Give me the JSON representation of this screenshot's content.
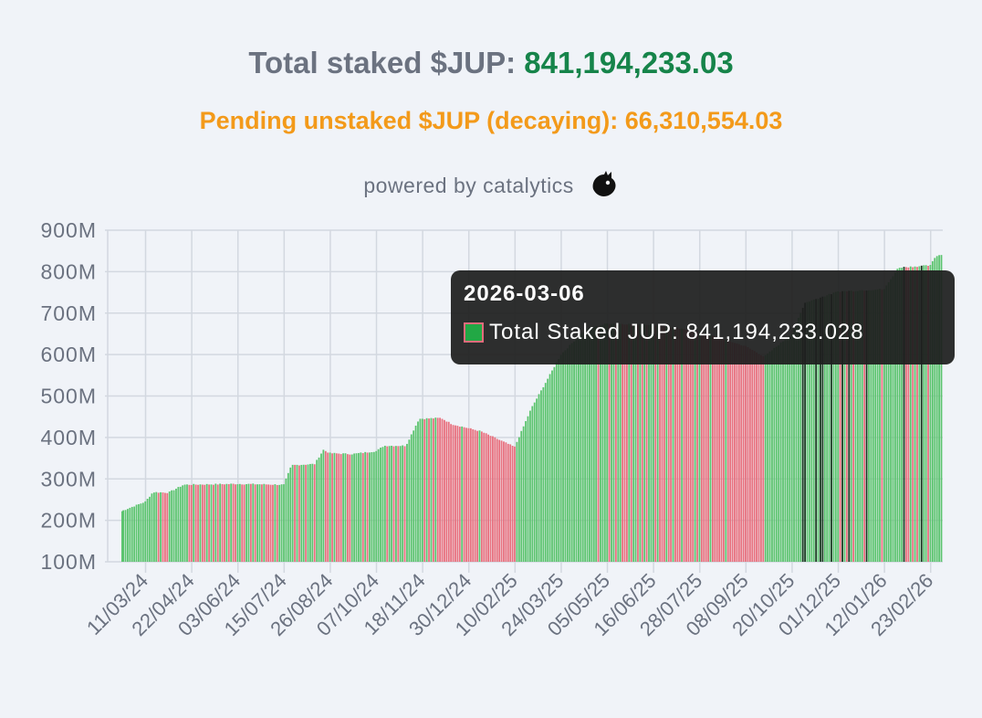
{
  "header": {
    "total_label": "Total staked $JUP:",
    "total_value": "841,194,233.03",
    "pending_label": "Pending unstaked $JUP (decaying):",
    "pending_value": "66,310,554.03",
    "powered_by": "powered by catalytics"
  },
  "tooltip": {
    "date": "2026-03-06",
    "label": "Total Staked JUP:",
    "value": "841,194,233.028"
  },
  "colors": {
    "up": "#5cc46f",
    "down": "#e8707e",
    "dark": "#1a3d22",
    "title_value": "#16844a",
    "subtitle": "#f39a1a"
  },
  "chart_data": {
    "type": "bar",
    "title": "Total Staked JUP",
    "series_name": "Total Staked JUP",
    "ylim": [
      100,
      900
    ],
    "y_unit": "M",
    "y_ticks": [
      "100M",
      "200M",
      "300M",
      "400M",
      "500M",
      "600M",
      "700M",
      "800M",
      "900M"
    ],
    "x_ticks": [
      "11/03/24",
      "22/04/24",
      "03/06/24",
      "15/07/24",
      "26/08/24",
      "07/10/24",
      "18/11/24",
      "30/12/24",
      "10/02/25",
      "24/03/25",
      "05/05/25",
      "16/06/25",
      "28/07/25",
      "08/09/25",
      "20/10/25",
      "01/12/25",
      "12/01/26",
      "23/02/26"
    ],
    "x_start": "2024-02-18",
    "x_end": "2026-03-06",
    "keypoints": [
      {
        "date": "2024-02-18",
        "value": 222
      },
      {
        "date": "2024-03-11",
        "value": 245
      },
      {
        "date": "2024-03-18",
        "value": 268
      },
      {
        "date": "2024-04-01",
        "value": 267
      },
      {
        "date": "2024-04-15",
        "value": 286
      },
      {
        "date": "2024-05-10",
        "value": 287
      },
      {
        "date": "2024-06-03",
        "value": 288
      },
      {
        "date": "2024-07-15",
        "value": 286
      },
      {
        "date": "2024-07-22",
        "value": 333
      },
      {
        "date": "2024-08-12",
        "value": 336
      },
      {
        "date": "2024-08-20",
        "value": 370
      },
      {
        "date": "2024-08-26",
        "value": 362
      },
      {
        "date": "2024-09-15",
        "value": 360
      },
      {
        "date": "2024-10-07",
        "value": 367
      },
      {
        "date": "2024-10-14",
        "value": 380
      },
      {
        "date": "2024-11-03",
        "value": 380
      },
      {
        "date": "2024-11-15",
        "value": 445
      },
      {
        "date": "2024-12-05",
        "value": 447
      },
      {
        "date": "2024-12-15",
        "value": 432
      },
      {
        "date": "2025-01-10",
        "value": 415
      },
      {
        "date": "2025-02-10",
        "value": 377
      },
      {
        "date": "2025-02-25",
        "value": 470
      },
      {
        "date": "2025-03-10",
        "value": 532
      },
      {
        "date": "2025-03-24",
        "value": 600
      },
      {
        "date": "2025-04-15",
        "value": 660
      },
      {
        "date": "2025-05-05",
        "value": 675
      },
      {
        "date": "2025-06-16",
        "value": 672
      },
      {
        "date": "2025-07-28",
        "value": 655
      },
      {
        "date": "2025-09-08",
        "value": 620
      },
      {
        "date": "2025-09-25",
        "value": 595
      },
      {
        "date": "2025-10-20",
        "value": 650
      },
      {
        "date": "2025-11-01",
        "value": 725
      },
      {
        "date": "2025-12-01",
        "value": 752
      },
      {
        "date": "2026-01-12",
        "value": 758
      },
      {
        "date": "2026-01-25",
        "value": 810
      },
      {
        "date": "2026-02-23",
        "value": 815
      },
      {
        "date": "2026-02-28",
        "value": 838
      },
      {
        "date": "2026-03-06",
        "value": 841.194
      }
    ]
  }
}
